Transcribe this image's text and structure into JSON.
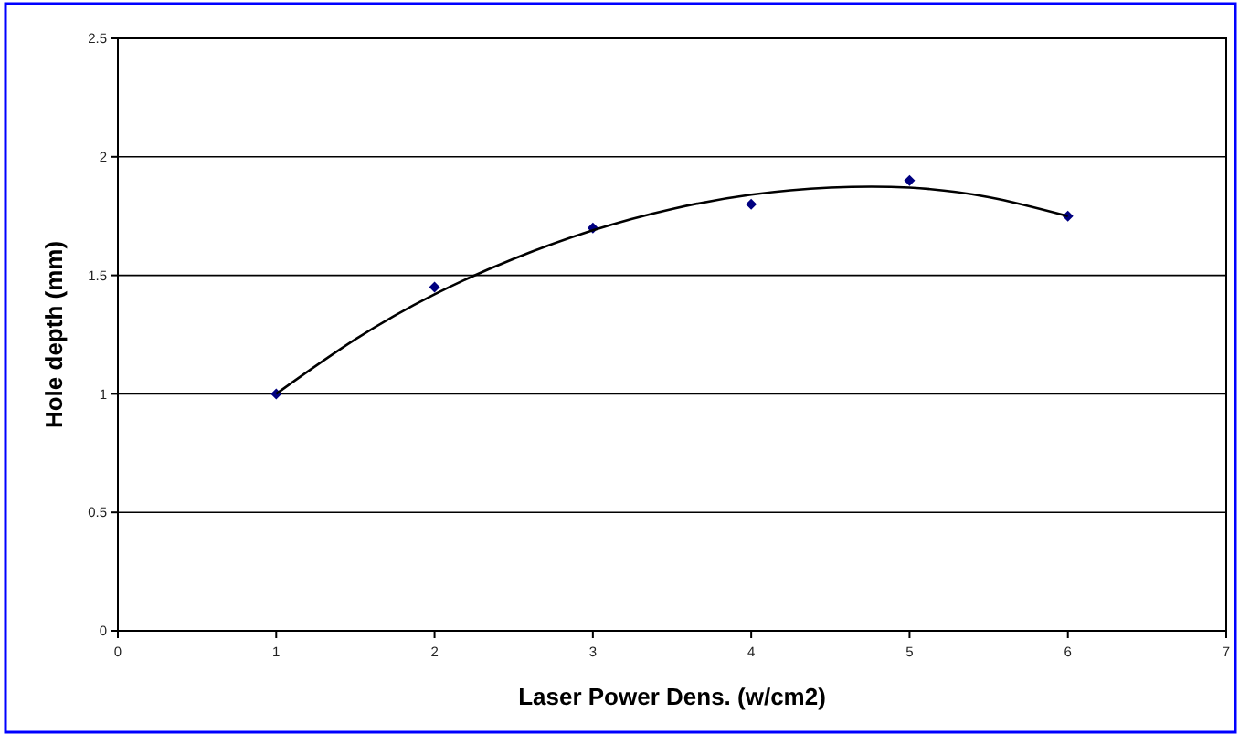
{
  "chart_data": {
    "type": "scatter",
    "xlabel": "Laser Power Dens. (w/cm2)",
    "ylabel": "Hole depth (mm)",
    "xlim": [
      0,
      7
    ],
    "xticks": [
      0,
      1,
      2,
      3,
      4,
      5,
      6,
      7
    ],
    "ylim": [
      0,
      2.5
    ],
    "yticks": [
      0,
      0.5,
      1,
      1.5,
      2,
      2.5
    ],
    "grid": "y",
    "marker": "diamond",
    "x": [
      1,
      2,
      3,
      4,
      5,
      6
    ],
    "series": [
      {
        "color": "#000080",
        "values": [
          1,
          1.45,
          1.7,
          1.8,
          1.9,
          1.75
        ]
      },
      {
        "type": "line",
        "color": "#000000",
        "marker": "none",
        "line_style": "solid",
        "x": [
          1,
          1.5,
          2,
          2.5,
          3,
          3.5,
          4,
          4.5,
          5,
          5.5,
          6
        ],
        "values": [
          1.0,
          1.23,
          1.42,
          1.57,
          1.69,
          1.78,
          1.84,
          1.87,
          1.87,
          1.83,
          1.75
        ]
      }
    ]
  }
}
